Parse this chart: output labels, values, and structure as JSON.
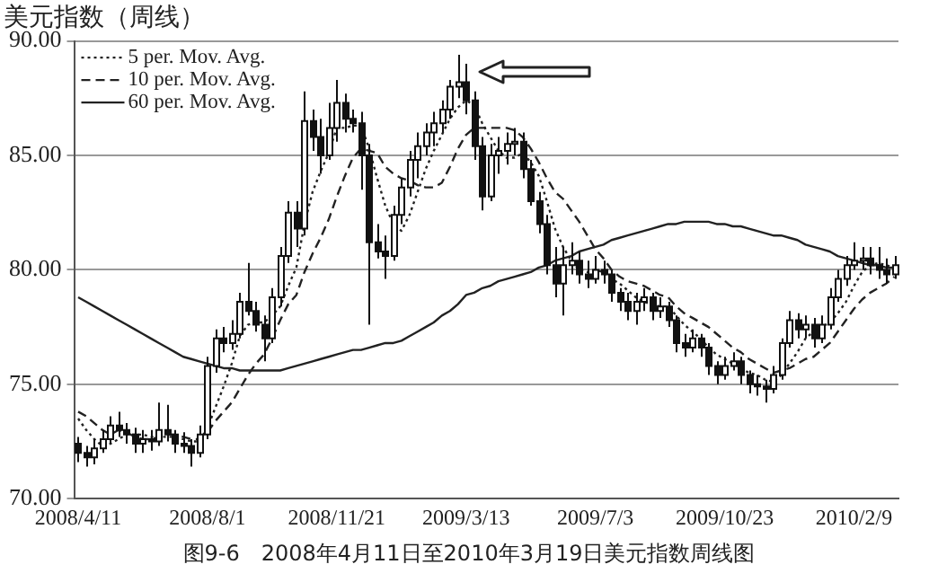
{
  "chart_data": {
    "type": "candlestick",
    "title": "美元指数（周线）",
    "categories": [
      "2008/4/11",
      null,
      null,
      null,
      null,
      null,
      null,
      null,
      null,
      null,
      null,
      null,
      null,
      null,
      null,
      null,
      "2008/8/1",
      null,
      null,
      null,
      null,
      null,
      null,
      null,
      null,
      null,
      null,
      null,
      null,
      null,
      null,
      null,
      "2008/11/21",
      null,
      null,
      null,
      null,
      null,
      null,
      null,
      null,
      null,
      null,
      null,
      null,
      null,
      null,
      null,
      "2009/3/13",
      null,
      null,
      null,
      null,
      null,
      null,
      null,
      null,
      null,
      null,
      null,
      null,
      null,
      null,
      null,
      "2009/7/3",
      null,
      null,
      null,
      null,
      null,
      null,
      null,
      null,
      null,
      null,
      null,
      null,
      null,
      null,
      null,
      "2009/10/23",
      null,
      null,
      null,
      null,
      null,
      null,
      null,
      null,
      null,
      null,
      null,
      null,
      null,
      null,
      null,
      "2010/2/9",
      null,
      null,
      null,
      null,
      null
    ],
    "color": "#111111",
    "colors": [
      "#111111",
      "#111111",
      "#ffffff",
      "#ffffff",
      "#ffffff",
      "#111111",
      "#111111",
      "#111111",
      "#ffffff",
      "#111111",
      "#ffffff",
      "#111111",
      "#111111",
      "#111111",
      "#111111",
      "#ffffff",
      "#ffffff",
      "#ffffff",
      "#111111",
      "#ffffff",
      "#ffffff",
      "#111111",
      "#111111",
      "#111111",
      "#ffffff",
      "#ffffff",
      "#ffffff",
      "#111111",
      "#ffffff",
      "#111111",
      "#111111",
      "#ffffff",
      "#ffffff",
      "#111111",
      "#111111",
      "#111111",
      "#111111",
      "#111111",
      "#111111",
      "#ffffff",
      "#ffffff",
      "#ffffff",
      "#ffffff",
      "#ffffff",
      "#ffffff",
      "#ffffff",
      "#ffffff",
      "#ffffff",
      "#111111",
      "#111111",
      "#111111",
      "#ffffff",
      "#ffffff",
      "#ffffff",
      "#ffffff",
      "#111111",
      "#111111",
      "#111111",
      "#111111",
      "#111111",
      "#ffffff",
      "#ffffff",
      "#111111",
      "#111111",
      "#ffffff",
      "#111111",
      "#111111",
      "#111111",
      "#111111",
      "#ffffff",
      "#ffffff",
      "#111111",
      "#ffffff",
      "#111111",
      "#111111",
      "#111111",
      "#ffffff",
      "#111111",
      "#111111",
      "#111111",
      "#ffffff",
      "#ffffff",
      "#111111",
      "#111111",
      "#111111",
      "#111111",
      "#ffffff",
      "#ffffff",
      "#ffffff",
      "#111111",
      "#ffffff",
      "#111111",
      "#ffffff",
      "#ffffff",
      "#ffffff",
      "#ffffff",
      "#ffffff",
      "#ffffff",
      "#111111",
      "#111111",
      "#111111",
      "#ffffff"
    ],
    "ohlc": [
      [
        72.4,
        72.7,
        71.6,
        72.0
      ],
      [
        72.0,
        72.3,
        71.4,
        71.8
      ],
      [
        71.8,
        72.6,
        71.5,
        72.2
      ],
      [
        72.2,
        73.0,
        72.0,
        72.6
      ],
      [
        72.6,
        73.6,
        72.4,
        73.2
      ],
      [
        73.2,
        73.8,
        72.7,
        73.0
      ],
      [
        73.0,
        73.3,
        72.4,
        72.8
      ],
      [
        72.8,
        73.1,
        72.0,
        72.4
      ],
      [
        72.4,
        73.0,
        72.0,
        72.6
      ],
      [
        72.6,
        73.0,
        72.1,
        72.5
      ],
      [
        72.5,
        74.2,
        72.3,
        73.0
      ],
      [
        73.0,
        74.1,
        72.5,
        72.8
      ],
      [
        72.8,
        73.0,
        72.0,
        72.4
      ],
      [
        72.4,
        72.9,
        72.0,
        72.3
      ],
      [
        72.3,
        72.6,
        71.4,
        72.0
      ],
      [
        72.0,
        73.2,
        71.8,
        72.8
      ],
      [
        72.8,
        76.2,
        72.6,
        75.8
      ],
      [
        75.8,
        77.4,
        75.5,
        77.0
      ],
      [
        77.0,
        77.5,
        76.4,
        76.8
      ],
      [
        76.8,
        77.8,
        76.5,
        77.2
      ],
      [
        77.2,
        79.0,
        77.0,
        78.6
      ],
      [
        78.6,
        80.3,
        78.0,
        78.2
      ],
      [
        78.2,
        78.6,
        77.3,
        77.6
      ],
      [
        77.6,
        78.0,
        76.0,
        77.0
      ],
      [
        77.0,
        79.2,
        76.8,
        78.8
      ],
      [
        78.8,
        81.0,
        78.4,
        80.6
      ],
      [
        80.6,
        83.0,
        80.3,
        82.5
      ],
      [
        82.5,
        83.0,
        81.0,
        81.8
      ],
      [
        81.8,
        87.8,
        81.5,
        86.5
      ],
      [
        86.5,
        87.0,
        85.2,
        85.8
      ],
      [
        85.8,
        86.6,
        84.2,
        85.0
      ],
      [
        85.0,
        87.3,
        84.8,
        86.2
      ],
      [
        86.2,
        88.3,
        85.6,
        87.3
      ],
      [
        87.3,
        87.7,
        86.0,
        86.6
      ],
      [
        86.6,
        87.0,
        86.0,
        86.4
      ],
      [
        86.4,
        86.9,
        83.5,
        85.0
      ],
      [
        85.0,
        85.5,
        77.6,
        81.2
      ],
      [
        81.2,
        82.0,
        80.5,
        80.8
      ],
      [
        80.8,
        81.5,
        79.6,
        80.6
      ],
      [
        80.6,
        82.8,
        80.4,
        82.4
      ],
      [
        82.4,
        84.0,
        82.0,
        83.6
      ],
      [
        83.6,
        85.2,
        83.2,
        84.8
      ],
      [
        84.8,
        86.0,
        84.0,
        85.4
      ],
      [
        85.4,
        86.4,
        85.0,
        86.0
      ],
      [
        86.0,
        86.9,
        85.4,
        86.4
      ],
      [
        86.4,
        87.4,
        86.0,
        87.0
      ],
      [
        87.0,
        88.3,
        86.6,
        88.0
      ],
      [
        88.0,
        89.4,
        87.5,
        88.2
      ],
      [
        88.2,
        89.0,
        86.8,
        87.4
      ],
      [
        87.4,
        87.8,
        84.8,
        85.4
      ],
      [
        85.4,
        85.8,
        82.6,
        83.2
      ],
      [
        83.2,
        85.5,
        83.0,
        85.0
      ],
      [
        85.0,
        85.8,
        84.2,
        85.2
      ],
      [
        85.2,
        86.0,
        84.6,
        85.5
      ],
      [
        85.5,
        86.2,
        85.0,
        85.6
      ],
      [
        85.6,
        86.0,
        84.0,
        84.4
      ],
      [
        84.4,
        84.8,
        82.8,
        83.0
      ],
      [
        83.0,
        83.4,
        81.6,
        82.0
      ],
      [
        82.0,
        82.4,
        79.8,
        80.2
      ],
      [
        80.2,
        81.0,
        78.8,
        79.4
      ],
      [
        79.4,
        81.0,
        78.0,
        80.2
      ],
      [
        80.2,
        81.2,
        79.8,
        80.4
      ],
      [
        80.4,
        80.8,
        79.4,
        79.8
      ],
      [
        79.8,
        80.4,
        79.2,
        79.6
      ],
      [
        79.6,
        80.6,
        79.4,
        80.0
      ],
      [
        80.0,
        80.4,
        79.4,
        79.8
      ],
      [
        79.8,
        80.0,
        78.6,
        79.0
      ],
      [
        79.0,
        79.2,
        78.2,
        78.6
      ],
      [
        78.6,
        79.0,
        77.8,
        78.2
      ],
      [
        78.2,
        79.0,
        77.6,
        78.6
      ],
      [
        78.6,
        79.2,
        78.2,
        78.8
      ],
      [
        78.8,
        79.0,
        77.8,
        78.2
      ],
      [
        78.2,
        78.8,
        77.9,
        78.4
      ],
      [
        78.4,
        78.6,
        77.5,
        77.8
      ],
      [
        77.8,
        78.0,
        76.4,
        76.8
      ],
      [
        76.8,
        77.2,
        76.2,
        76.6
      ],
      [
        76.6,
        77.4,
        76.4,
        77.0
      ],
      [
        77.0,
        77.2,
        76.2,
        76.6
      ],
      [
        76.6,
        76.8,
        75.4,
        75.8
      ],
      [
        75.8,
        76.0,
        75.0,
        75.4
      ],
      [
        75.4,
        76.2,
        75.2,
        75.8
      ],
      [
        75.8,
        76.4,
        75.6,
        76.0
      ],
      [
        76.0,
        76.2,
        75.0,
        75.4
      ],
      [
        75.4,
        75.6,
        74.6,
        75.0
      ],
      [
        75.0,
        75.4,
        74.5,
        74.9
      ],
      [
        74.9,
        75.2,
        74.2,
        74.8
      ],
      [
        74.8,
        75.8,
        74.6,
        75.4
      ],
      [
        75.4,
        77.0,
        75.2,
        76.8
      ],
      [
        76.8,
        78.2,
        76.6,
        77.8
      ],
      [
        77.8,
        78.1,
        77.0,
        77.4
      ],
      [
        77.4,
        78.0,
        77.0,
        77.6
      ],
      [
        77.6,
        77.9,
        76.6,
        77.0
      ],
      [
        77.0,
        78.0,
        76.8,
        77.6
      ],
      [
        77.6,
        79.2,
        77.4,
        78.8
      ],
      [
        78.8,
        80.0,
        78.6,
        79.6
      ],
      [
        79.6,
        80.6,
        79.3,
        80.2
      ],
      [
        80.2,
        81.2,
        80.0,
        80.4
      ],
      [
        80.4,
        81.0,
        80.0,
        80.5
      ],
      [
        80.5,
        81.0,
        79.8,
        80.2
      ],
      [
        80.2,
        81.0,
        79.6,
        80.0
      ],
      [
        80.0,
        80.5,
        79.4,
        79.8
      ],
      [
        79.8,
        80.6,
        79.6,
        80.2
      ]
    ],
    "series": [
      {
        "type": "line",
        "name": "5 per. Mov. Avg.",
        "color": "#222222",
        "line_style": "dotted",
        "values": [
          73.5,
          73.0,
          72.6,
          72.3,
          72.4,
          72.6,
          72.8,
          72.8,
          72.8,
          72.7,
          72.7,
          72.7,
          72.7,
          72.6,
          72.5,
          72.5,
          73.1,
          74.0,
          74.9,
          75.9,
          77.1,
          77.6,
          77.7,
          77.7,
          78.0,
          78.4,
          79.3,
          80.1,
          82.0,
          83.4,
          84.3,
          85.1,
          86.2,
          86.2,
          86.3,
          86.3,
          85.3,
          84.0,
          82.8,
          82.0,
          81.7,
          82.4,
          83.4,
          84.4,
          85.2,
          85.9,
          86.6,
          87.1,
          87.4,
          87.2,
          86.4,
          85.8,
          85.2,
          84.9,
          84.9,
          85.1,
          84.7,
          84.1,
          83.0,
          81.8,
          81.0,
          80.4,
          80.0,
          79.9,
          80.0,
          79.9,
          79.6,
          79.4,
          79.1,
          78.8,
          78.6,
          78.5,
          78.4,
          78.4,
          78.0,
          77.6,
          77.3,
          77.0,
          76.6,
          76.3,
          76.1,
          75.9,
          75.7,
          75.5,
          75.4,
          75.2,
          75.1,
          75.4,
          75.9,
          76.4,
          77.0,
          77.3,
          77.5,
          77.7,
          78.1,
          78.6,
          79.3,
          79.9,
          80.2,
          80.3,
          80.2,
          80.1
        ]
      },
      {
        "type": "line",
        "name": "10 per. Mov. Avg.",
        "color": "#222222",
        "line_style": "dashed",
        "values": [
          73.8,
          73.6,
          73.3,
          73.0,
          72.8,
          73.0,
          72.9,
          72.7,
          72.6,
          72.6,
          72.7,
          72.8,
          72.8,
          72.7,
          72.6,
          72.6,
          72.9,
          73.4,
          73.8,
          74.2,
          74.8,
          75.4,
          75.9,
          76.3,
          77.0,
          77.8,
          78.5,
          78.9,
          79.9,
          80.7,
          81.4,
          82.2,
          83.2,
          84.1,
          84.9,
          85.3,
          85.2,
          85.1,
          84.5,
          84.2,
          84.0,
          83.9,
          83.7,
          83.6,
          83.6,
          83.8,
          84.5,
          85.3,
          85.9,
          86.2,
          86.2,
          86.2,
          86.2,
          86.2,
          86.1,
          85.8,
          85.3,
          84.7,
          84.0,
          83.4,
          83.1,
          82.6,
          82.1,
          81.5,
          80.9,
          80.5,
          80.0,
          79.7,
          79.5,
          79.4,
          79.3,
          79.1,
          78.9,
          78.8,
          78.4,
          78.1,
          77.9,
          77.7,
          77.5,
          77.2,
          76.9,
          76.6,
          76.4,
          76.1,
          75.9,
          75.7,
          75.5,
          75.6,
          75.7,
          75.9,
          76.1,
          76.2,
          76.5,
          76.8,
          77.3,
          77.8,
          78.3,
          78.7,
          79.0,
          79.2,
          79.4,
          79.7
        ]
      },
      {
        "type": "line",
        "name": "60 per. Mov. Avg.",
        "color": "#222222",
        "line_style": "solid",
        "values": [
          78.8,
          78.6,
          78.4,
          78.2,
          78.0,
          77.8,
          77.6,
          77.4,
          77.2,
          77.0,
          76.8,
          76.6,
          76.4,
          76.2,
          76.1,
          76.0,
          75.9,
          75.8,
          75.7,
          75.7,
          75.6,
          75.6,
          75.6,
          75.6,
          75.6,
          75.6,
          75.7,
          75.8,
          75.9,
          76.0,
          76.1,
          76.2,
          76.3,
          76.4,
          76.5,
          76.5,
          76.6,
          76.7,
          76.8,
          76.8,
          76.9,
          77.1,
          77.3,
          77.5,
          77.7,
          78.0,
          78.2,
          78.5,
          78.9,
          79.0,
          79.2,
          79.3,
          79.5,
          79.6,
          79.7,
          79.8,
          79.9,
          80.1,
          80.2,
          80.4,
          80.5,
          80.6,
          80.8,
          80.9,
          81.0,
          81.1,
          81.3,
          81.4,
          81.5,
          81.6,
          81.7,
          81.8,
          81.9,
          82.0,
          82.0,
          82.1,
          82.1,
          82.1,
          82.1,
          82.0,
          82.0,
          81.9,
          81.9,
          81.8,
          81.7,
          81.6,
          81.5,
          81.5,
          81.4,
          81.3,
          81.1,
          81.0,
          80.9,
          80.8,
          80.6,
          80.5,
          80.4,
          80.3,
          80.2,
          80.2,
          80.1,
          80.1
        ]
      }
    ],
    "ylim": [
      70,
      90
    ],
    "yticks": [
      {
        "value": 70,
        "label": "70.00"
      },
      {
        "value": 75,
        "label": "75.00"
      },
      {
        "value": 80,
        "label": "80.00"
      },
      {
        "value": 85,
        "label": "85.00"
      },
      {
        "value": 90,
        "label": "90.00"
      }
    ],
    "grid": "y",
    "legend": "top left",
    "annotations": [
      "图9-6　2008年4月11日至2010年3月19日美元指数周线图"
    ]
  }
}
